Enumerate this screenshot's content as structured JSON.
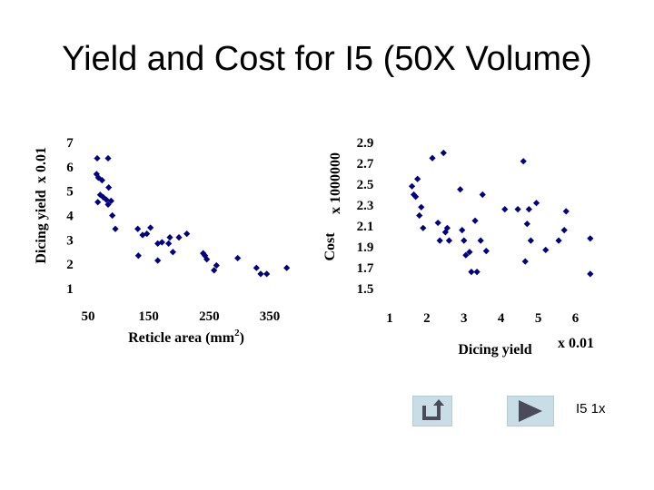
{
  "title": "Yield and Cost for I5 (50X Volume)",
  "slide_label": "I5 1x",
  "nav": {
    "back_icon": "return-arrow-icon",
    "next_icon": "play-triangle-icon"
  },
  "colors": {
    "marker": "#000080",
    "button": "#c8dde5",
    "icon": "#4a4a5a"
  },
  "chart_data": [
    {
      "type": "scatter",
      "title": "",
      "xlabel": "Reticle area (mm",
      "xlabel_sup": "2",
      "xlabel_suffix": ")",
      "ylabel": "Dicing yield",
      "ylabel_scale": "x 0.01",
      "xlim": [
        50,
        380
      ],
      "ylim": [
        1,
        7
      ],
      "xticks": [
        "50",
        "150",
        "250",
        "350"
      ],
      "xtick_values": [
        50,
        150,
        250,
        350
      ],
      "yticks": [
        "1",
        "2",
        "3",
        "4",
        "5",
        "6",
        "7"
      ],
      "ytick_values": [
        1,
        2,
        3,
        4,
        5,
        6,
        7
      ],
      "points": [
        [
          65,
          6.35
        ],
        [
          83,
          6.35
        ],
        [
          64,
          5.7
        ],
        [
          67,
          5.55
        ],
        [
          73,
          5.45
        ],
        [
          84,
          5.15
        ],
        [
          70,
          4.85
        ],
        [
          75,
          4.75
        ],
        [
          80,
          4.65
        ],
        [
          88,
          4.6
        ],
        [
          83,
          4.45
        ],
        [
          66,
          4.55
        ],
        [
          90,
          4.0
        ],
        [
          95,
          3.45
        ],
        [
          132,
          3.45
        ],
        [
          140,
          3.2
        ],
        [
          147,
          3.25
        ],
        [
          153,
          3.5
        ],
        [
          165,
          2.85
        ],
        [
          172,
          2.9
        ],
        [
          183,
          2.85
        ],
        [
          185,
          3.1
        ],
        [
          190,
          2.5
        ],
        [
          200,
          3.1
        ],
        [
          213,
          3.25
        ],
        [
          240,
          2.45
        ],
        [
          243,
          2.35
        ],
        [
          246,
          2.2
        ],
        [
          258,
          1.75
        ],
        [
          262,
          1.95
        ],
        [
          297,
          2.25
        ],
        [
          328,
          1.85
        ],
        [
          335,
          1.6
        ],
        [
          345,
          1.6
        ],
        [
          378,
          1.85
        ],
        [
          133,
          2.35
        ],
        [
          165,
          2.15
        ]
      ]
    },
    {
      "type": "scatter",
      "title": "",
      "xlabel": "Dicing yield",
      "xlabel_scale": "x 0.01",
      "ylabel": "Cost",
      "ylabel_scale": "x 1000000",
      "xlim": [
        1,
        6.6
      ],
      "ylim": [
        1.5,
        2.9
      ],
      "xticks": [
        "1",
        "2",
        "3",
        "4",
        "5",
        "6"
      ],
      "xtick_values": [
        1,
        2,
        3,
        4,
        5,
        6
      ],
      "yticks": [
        "1.5",
        "1.7",
        "1.9",
        "2.1",
        "2.3",
        "2.5",
        "2.7",
        "2.9"
      ],
      "ytick_values": [
        1.5,
        1.7,
        1.9,
        2.1,
        2.3,
        2.5,
        2.7,
        2.9
      ],
      "points": [
        [
          1.6,
          2.48
        ],
        [
          1.65,
          2.4
        ],
        [
          1.7,
          2.38
        ],
        [
          1.75,
          2.55
        ],
        [
          1.8,
          2.2
        ],
        [
          1.85,
          2.28
        ],
        [
          1.9,
          2.08
        ],
        [
          2.15,
          2.75
        ],
        [
          2.3,
          2.13
        ],
        [
          2.35,
          1.96
        ],
        [
          2.45,
          2.8
        ],
        [
          2.5,
          2.04
        ],
        [
          2.55,
          2.08
        ],
        [
          2.6,
          1.96
        ],
        [
          2.9,
          2.45
        ],
        [
          2.95,
          2.06
        ],
        [
          3.0,
          1.96
        ],
        [
          3.05,
          1.82
        ],
        [
          3.15,
          1.85
        ],
        [
          3.2,
          1.66
        ],
        [
          3.3,
          2.15
        ],
        [
          3.35,
          1.66
        ],
        [
          3.45,
          1.96
        ],
        [
          3.5,
          2.4
        ],
        [
          3.6,
          1.86
        ],
        [
          4.1,
          2.26
        ],
        [
          4.45,
          2.26
        ],
        [
          4.6,
          2.72
        ],
        [
          4.65,
          1.76
        ],
        [
          4.7,
          2.12
        ],
        [
          4.75,
          2.26
        ],
        [
          4.8,
          1.96
        ],
        [
          4.95,
          2.32
        ],
        [
          5.2,
          1.87
        ],
        [
          5.55,
          1.96
        ],
        [
          5.7,
          2.06
        ],
        [
          5.75,
          2.24
        ],
        [
          6.4,
          1.98
        ],
        [
          6.4,
          1.64
        ]
      ]
    }
  ]
}
